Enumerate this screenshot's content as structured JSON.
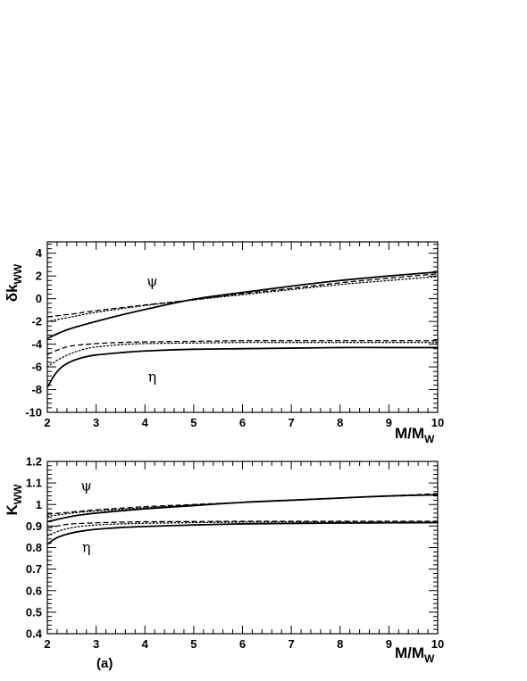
{
  "chart_data": [
    {
      "type": "line",
      "ylabel": "δk",
      "ylabel_sub": "WW",
      "xlabel": "M/M",
      "xlabel_sub": "W",
      "xlim": [
        2,
        10
      ],
      "ylim": [
        -10,
        5
      ],
      "x_ticks": [
        2,
        3,
        4,
        5,
        6,
        7,
        8,
        9,
        10
      ],
      "y_ticks": [
        -10,
        -8,
        -6,
        -4,
        -2,
        0,
        2,
        4
      ],
      "annotations": [
        {
          "text": "ψ",
          "x": 4.15,
          "y": 1.1
        },
        {
          "text": "η",
          "x": 4.15,
          "y": -7.3
        }
      ],
      "series": [
        {
          "group": "psi",
          "style": "solid",
          "x": [
            2.0,
            2.25,
            2.5,
            3.0,
            3.5,
            4.0,
            5.0,
            6.0,
            7.0,
            8.0,
            9.0,
            10.0
          ],
          "y": [
            -3.5,
            -3.0,
            -2.6,
            -2.0,
            -1.45,
            -0.95,
            -0.05,
            0.55,
            1.1,
            1.6,
            2.0,
            2.35
          ]
        },
        {
          "group": "psi",
          "style": "dashed",
          "x": [
            2.0,
            2.5,
            3.0,
            4.0,
            5.0,
            6.0,
            7.0,
            8.0,
            9.0,
            10.0
          ],
          "y": [
            -1.6,
            -1.35,
            -1.05,
            -0.55,
            -0.1,
            0.45,
            0.9,
            1.4,
            1.8,
            2.2
          ]
        },
        {
          "group": "psi",
          "style": "dotted",
          "x": [
            2.0,
            2.5,
            3.0,
            4.0,
            5.0,
            6.0,
            7.0,
            8.0,
            9.0,
            10.0
          ],
          "y": [
            -2.0,
            -1.6,
            -1.2,
            -0.6,
            -0.1,
            0.35,
            0.8,
            1.25,
            1.6,
            1.95
          ]
        },
        {
          "group": "eta",
          "style": "solid",
          "x": [
            2.0,
            2.15,
            2.3,
            2.5,
            2.75,
            3.0,
            3.5,
            4.0,
            5.0,
            6.0,
            7.0,
            8.0,
            9.0,
            10.0
          ],
          "y": [
            -7.8,
            -6.7,
            -6.0,
            -5.5,
            -5.15,
            -4.95,
            -4.75,
            -4.6,
            -4.45,
            -4.4,
            -4.35,
            -4.3,
            -4.3,
            -4.3
          ]
        },
        {
          "group": "eta",
          "style": "dashed",
          "x": [
            2.0,
            2.25,
            2.5,
            3.0,
            3.5,
            4.0,
            5.0,
            6.0,
            7.0,
            8.0,
            9.0,
            10.0
          ],
          "y": [
            -4.9,
            -4.45,
            -4.15,
            -3.95,
            -3.85,
            -3.8,
            -3.75,
            -3.7,
            -3.7,
            -3.7,
            -3.7,
            -3.7
          ]
        },
        {
          "group": "eta",
          "style": "dotted",
          "x": [
            2.0,
            2.25,
            2.5,
            2.75,
            3.0,
            3.5,
            4.0,
            5.0,
            6.0,
            7.0,
            8.0,
            9.0,
            10.0
          ],
          "y": [
            -6.0,
            -5.3,
            -4.8,
            -4.45,
            -4.25,
            -4.05,
            -3.95,
            -3.9,
            -3.85,
            -3.85,
            -3.85,
            -3.85,
            -3.85
          ]
        }
      ]
    },
    {
      "type": "line",
      "ylabel": "K",
      "ylabel_sub": "WW",
      "xlabel": "M/M",
      "xlabel_sub": "W",
      "xlim": [
        2,
        10
      ],
      "ylim": [
        0.4,
        1.2
      ],
      "x_ticks": [
        2,
        3,
        4,
        5,
        6,
        7,
        8,
        9,
        10
      ],
      "y_ticks": [
        0.4,
        0.5,
        0.6,
        0.7,
        0.8,
        0.9,
        1.0,
        1.1,
        1.2
      ],
      "y_tick_labels": [
        "0.4",
        "0.5",
        "0.6",
        "0.7",
        "0.8",
        "0.9",
        "1",
        "1.1",
        "1.2"
      ],
      "annotations": [
        {
          "text": "ψ",
          "x": 2.8,
          "y": 1.065
        },
        {
          "text": "η",
          "x": 2.8,
          "y": 0.78
        }
      ],
      "panel_label": "(a)",
      "series": [
        {
          "group": "psi",
          "style": "solid",
          "x": [
            2.0,
            2.5,
            3.0,
            4.0,
            5.0,
            6.0,
            7.0,
            8.0,
            9.0,
            10.0
          ],
          "y": [
            0.92,
            0.945,
            0.96,
            0.98,
            0.995,
            1.01,
            1.02,
            1.03,
            1.04,
            1.045
          ]
        },
        {
          "group": "psi",
          "style": "dashed",
          "x": [
            2.0,
            2.5,
            3.0,
            4.0,
            5.0,
            6.0,
            7.0,
            8.0,
            9.0,
            10.0
          ],
          "y": [
            0.955,
            0.965,
            0.975,
            0.99,
            1.0,
            1.01,
            1.02,
            1.03,
            1.04,
            1.05
          ]
        },
        {
          "group": "psi",
          "style": "dotted",
          "x": [
            2.0,
            2.5,
            3.0,
            4.0,
            5.0,
            6.0,
            7.0,
            8.0,
            9.0,
            10.0
          ],
          "y": [
            0.945,
            0.96,
            0.97,
            0.985,
            0.998,
            1.01,
            1.02,
            1.03,
            1.038,
            1.045
          ]
        },
        {
          "group": "eta",
          "style": "solid",
          "x": [
            2.0,
            2.15,
            2.3,
            2.5,
            2.75,
            3.0,
            3.5,
            4.0,
            5.0,
            6.0,
            7.0,
            8.0,
            9.0,
            10.0
          ],
          "y": [
            0.815,
            0.84,
            0.855,
            0.868,
            0.878,
            0.885,
            0.893,
            0.898,
            0.905,
            0.91,
            0.912,
            0.914,
            0.915,
            0.916
          ]
        },
        {
          "group": "eta",
          "style": "dashed",
          "x": [
            2.0,
            2.25,
            2.5,
            3.0,
            3.5,
            4.0,
            5.0,
            6.0,
            7.0,
            8.0,
            9.0,
            10.0
          ],
          "y": [
            0.89,
            0.902,
            0.91,
            0.915,
            0.918,
            0.92,
            0.921,
            0.922,
            0.922,
            0.922,
            0.922,
            0.922
          ]
        },
        {
          "group": "eta",
          "style": "dotted",
          "x": [
            2.0,
            2.25,
            2.5,
            2.75,
            3.0,
            3.5,
            4.0,
            5.0,
            6.0,
            7.0,
            8.0,
            9.0,
            10.0
          ],
          "y": [
            0.855,
            0.878,
            0.892,
            0.9,
            0.905,
            0.91,
            0.913,
            0.916,
            0.918,
            0.918,
            0.918,
            0.918,
            0.918
          ]
        }
      ]
    }
  ]
}
